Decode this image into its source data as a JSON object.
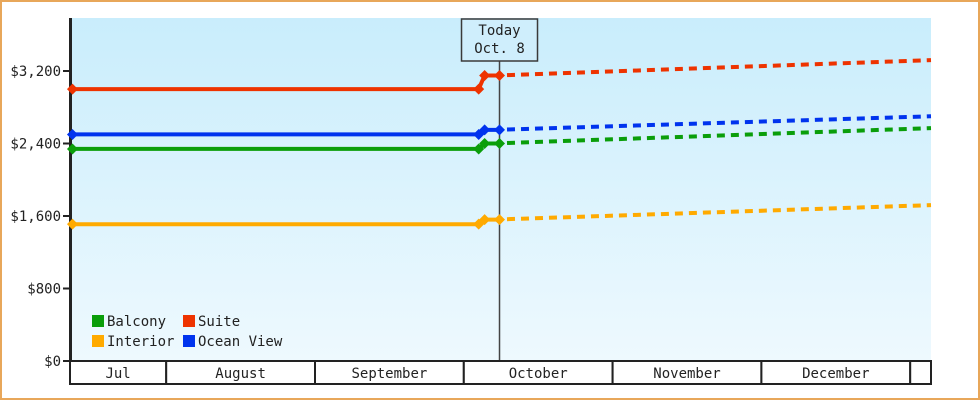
{
  "colors": {
    "frame_border": "#e8a75a",
    "plot_bg_top": "#c9edfc",
    "plot_bg_bottom": "#eef9fe",
    "axis": "#222222",
    "today_line": "#444444",
    "today_box_fill": "#cfeefc",
    "today_box_border": "#3a3a3a",
    "month_cell_fill": "#ffffff",
    "text": "#222222"
  },
  "legend": {
    "items": [
      {
        "label": "Balcony",
        "color": "#0a9e0a"
      },
      {
        "label": "Suite",
        "color": "#ee3300"
      },
      {
        "label": "Interior",
        "color": "#ffaa00"
      },
      {
        "label": "Ocean View",
        "color": "#0033ee"
      }
    ]
  },
  "chart_data": {
    "type": "line",
    "title": "",
    "x_unit": "months since Jul 1 (0 = Jul 1)",
    "today": {
      "label_line1": "Today",
      "label_line2": "Oct. 8",
      "m": 3.24
    },
    "x_axis": {
      "labels": [
        "Jul",
        "August",
        "September",
        "October",
        "November",
        "December",
        ""
      ]
    },
    "y_axis": {
      "ticks": [
        0,
        800,
        1600,
        2400,
        3200
      ],
      "tick_labels": [
        "$0",
        "$800",
        "$1,600",
        "$2,400",
        "$3,200"
      ],
      "ylim": [
        0,
        3800
      ]
    },
    "series": [
      {
        "name": "Suite",
        "color": "#ee3300",
        "price_before_today": 3000,
        "price_at_today": 3150,
        "forecast_end_price": 3320,
        "points_solid": [
          [
            0.37,
            3000
          ],
          [
            3.1,
            3000
          ],
          [
            3.14,
            3150
          ],
          [
            3.24,
            3150
          ]
        ],
        "points_dashed": [
          [
            3.29,
            3155
          ],
          [
            6.14,
            3320
          ]
        ],
        "markers": [
          [
            0.37,
            3000
          ],
          [
            3.1,
            3000
          ],
          [
            3.14,
            3150
          ],
          [
            3.24,
            3150
          ]
        ]
      },
      {
        "name": "Ocean View",
        "color": "#0033ee",
        "price_before_today": 2500,
        "price_at_today": 2550,
        "forecast_end_price": 2700,
        "points_solid": [
          [
            0.37,
            2500
          ],
          [
            3.1,
            2500
          ],
          [
            3.14,
            2550
          ],
          [
            3.24,
            2550
          ]
        ],
        "points_dashed": [
          [
            3.29,
            2555
          ],
          [
            6.14,
            2700
          ]
        ],
        "markers": [
          [
            0.37,
            2500
          ],
          [
            3.1,
            2500
          ],
          [
            3.14,
            2550
          ],
          [
            3.24,
            2550
          ]
        ]
      },
      {
        "name": "Balcony",
        "color": "#0a9e0a",
        "price_before_today": 2340,
        "price_at_today": 2400,
        "forecast_end_price": 2570,
        "points_solid": [
          [
            0.37,
            2340
          ],
          [
            3.1,
            2340
          ],
          [
            3.14,
            2400
          ],
          [
            3.24,
            2400
          ]
        ],
        "points_dashed": [
          [
            3.29,
            2405
          ],
          [
            6.14,
            2570
          ]
        ],
        "markers": [
          [
            0.37,
            2340
          ],
          [
            3.1,
            2340
          ],
          [
            3.14,
            2400
          ],
          [
            3.24,
            2400
          ]
        ]
      },
      {
        "name": "Interior",
        "color": "#ffaa00",
        "price_before_today": 1510,
        "price_at_today": 1560,
        "forecast_end_price": 1720,
        "points_solid": [
          [
            0.37,
            1510
          ],
          [
            3.1,
            1510
          ],
          [
            3.14,
            1560
          ],
          [
            3.24,
            1560
          ]
        ],
        "points_dashed": [
          [
            3.29,
            1565
          ],
          [
            6.14,
            1720
          ]
        ],
        "markers": [
          [
            0.37,
            1510
          ],
          [
            3.1,
            1510
          ],
          [
            3.14,
            1560
          ],
          [
            3.24,
            1560
          ]
        ]
      }
    ]
  }
}
